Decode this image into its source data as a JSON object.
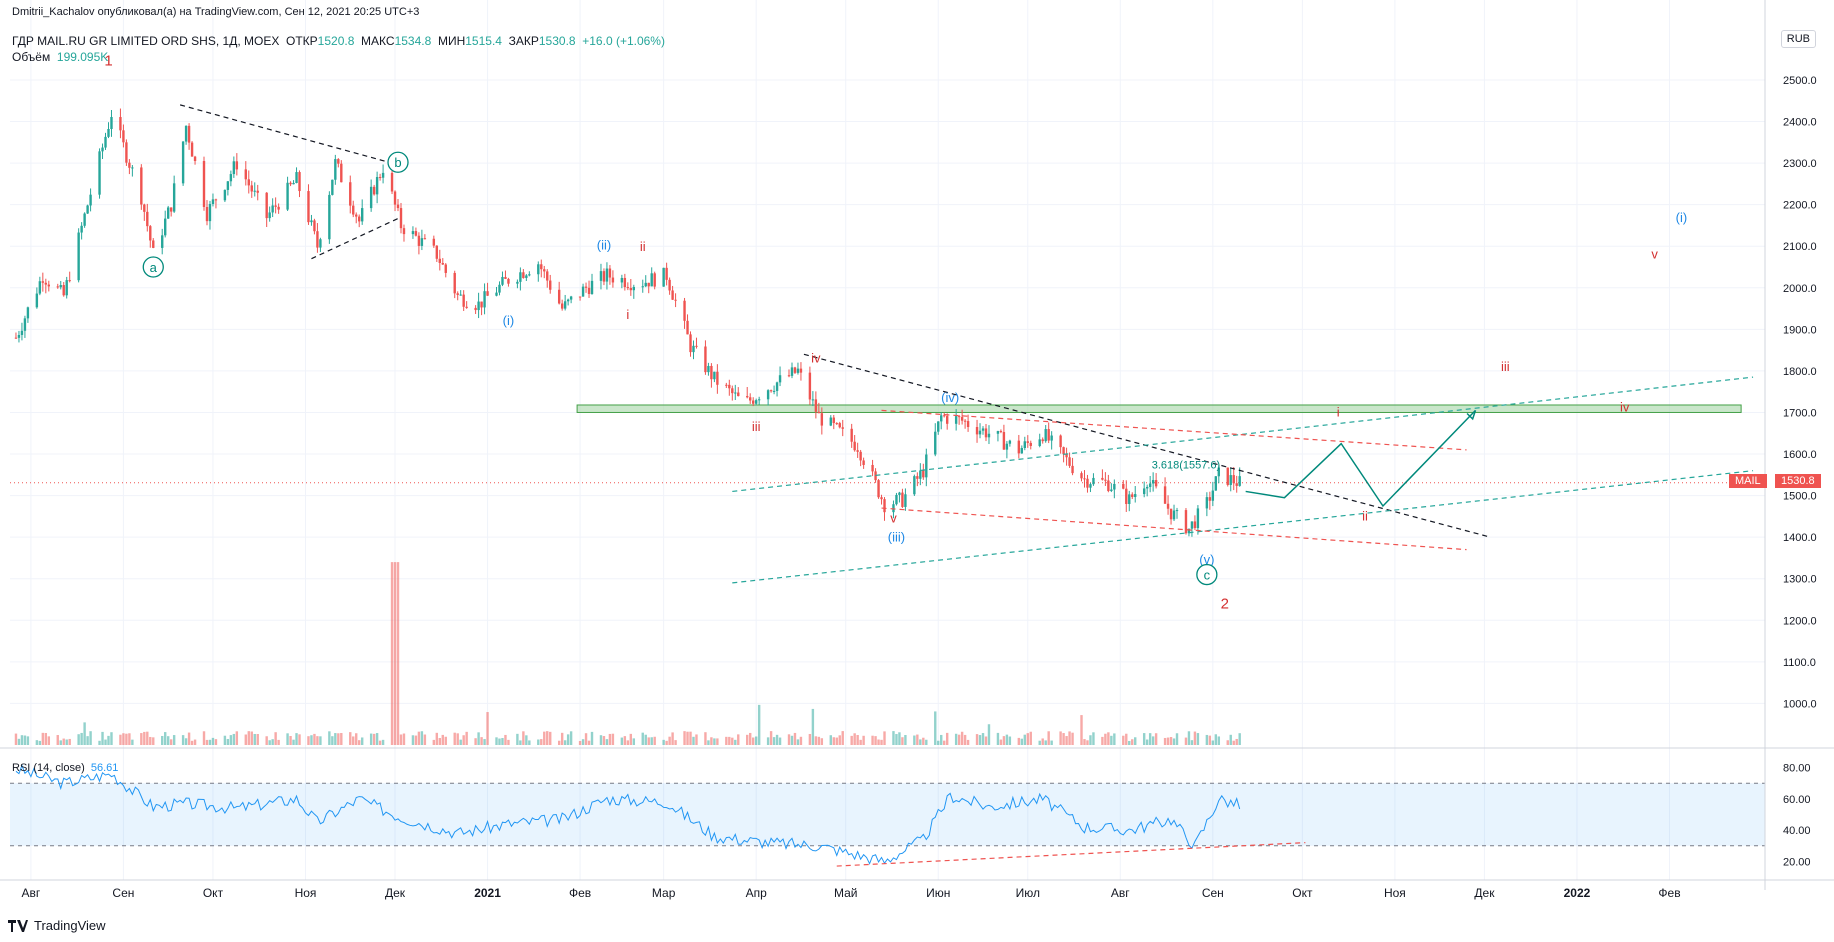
{
  "header": {
    "publisher": "Dmitrii_Kachalov опубликовал(а) на TradingView.com, Сен 12, 2021 20:25 UTC+3",
    "symbol": "ГДР MAIL.RU GR LIMITED ORD SHS, 1Д, MOEX",
    "open_label": "ОТКР",
    "open": "1520.8",
    "high_label": "МАКС",
    "high": "1534.8",
    "low_label": "МИН",
    "low": "1515.4",
    "close_label": "ЗАКР",
    "close": "1530.8",
    "change": "+16.0 (+1.06%)",
    "volume_label": "Объём",
    "volume": "199.095K"
  },
  "currency": "RUB",
  "price_tag": {
    "ticker": "MAIL",
    "price": "1530.8"
  },
  "rsi": {
    "label": "RSI (14, close)",
    "value": "56.61",
    "levels": [
      70,
      30
    ]
  },
  "footer": {
    "brand": "TradingView"
  },
  "chart_data": {
    "type": "candlestick",
    "price_axis": {
      "ticks": [
        "2500.0",
        "2400.0",
        "2300.0",
        "2200.0",
        "2100.0",
        "2000.0",
        "1900.0",
        "1800.0",
        "1700.0",
        "1600.0",
        "1500.0",
        "1400.0",
        "1300.0",
        "1200.0",
        "1100.0",
        "1000.0"
      ],
      "range": [
        900,
        2560
      ]
    },
    "rsi_axis": {
      "ticks": [
        "80.00",
        "60.00",
        "40.00",
        "20.00"
      ],
      "range": [
        10,
        90
      ]
    },
    "time_axis": [
      "Авг",
      "Сен",
      "Окт",
      "Ноя",
      "Дек",
      "2021",
      "Фев",
      "Мар",
      "Апр",
      "Май",
      "Июн",
      "Июл",
      "Авг",
      "Сен",
      "Окт",
      "Ноя",
      "Дек",
      "2022",
      "Фев"
    ],
    "price_path": [
      [
        "2020-07-27",
        1880
      ],
      [
        "2020-08-05",
        2030
      ],
      [
        "2020-08-12",
        1980
      ],
      [
        "2020-08-20",
        2200
      ],
      [
        "2020-08-28",
        2420
      ],
      [
        "2020-09-07",
        2220
      ],
      [
        "2020-09-11",
        2080
      ],
      [
        "2020-09-17",
        2200
      ],
      [
        "2020-09-22",
        2390
      ],
      [
        "2020-09-29",
        2180
      ],
      [
        "2020-10-09",
        2300
      ],
      [
        "2020-10-19",
        2170
      ],
      [
        "2020-10-29",
        2260
      ],
      [
        "2020-11-05",
        2100
      ],
      [
        "2020-11-11",
        2300
      ],
      [
        "2020-11-19",
        2160
      ],
      [
        "2020-11-27",
        2290
      ],
      [
        "2020-12-03",
        2150
      ],
      [
        "2020-12-15",
        2080
      ],
      [
        "2020-12-22",
        1980
      ],
      [
        "2020-12-29",
        1960
      ],
      [
        "2021-01-08",
        2020
      ],
      [
        "2021-01-18",
        2060
      ],
      [
        "2021-01-26",
        1950
      ],
      [
        "2021-02-03",
        2000
      ],
      [
        "2021-02-10",
        2030
      ],
      [
        "2021-02-20",
        2010
      ],
      [
        "2021-03-02",
        2030
      ],
      [
        "2021-03-10",
        1860
      ],
      [
        "2021-03-18",
        1780
      ],
      [
        "2021-03-28",
        1720
      ],
      [
        "2021-04-05",
        1760
      ],
      [
        "2021-04-15",
        1800
      ],
      [
        "2021-04-22",
        1690
      ],
      [
        "2021-05-05",
        1620
      ],
      [
        "2021-05-14",
        1480
      ],
      [
        "2021-05-20",
        1490
      ],
      [
        "2021-05-27",
        1560
      ],
      [
        "2021-06-02",
        1690
      ],
      [
        "2021-06-09",
        1680
      ],
      [
        "2021-06-18",
        1650
      ],
      [
        "2021-06-28",
        1610
      ],
      [
        "2021-07-06",
        1650
      ],
      [
        "2021-07-12",
        1600
      ],
      [
        "2021-07-20",
        1540
      ],
      [
        "2021-07-28",
        1530
      ],
      [
        "2021-08-04",
        1490
      ],
      [
        "2021-08-10",
        1540
      ],
      [
        "2021-08-18",
        1460
      ],
      [
        "2021-08-24",
        1420
      ],
      [
        "2021-08-30",
        1480
      ],
      [
        "2021-09-03",
        1550
      ],
      [
        "2021-09-10",
        1530
      ]
    ],
    "volume": {
      "spike": [
        "2020-12-01",
        1340
      ],
      "base": 960,
      "axis_value": "1000.0"
    },
    "rsi_series": [
      [
        "2020-07-27",
        79
      ],
      [
        "2020-08-12",
        70
      ],
      [
        "2020-08-28",
        76
      ],
      [
        "2020-09-11",
        55
      ],
      [
        "2020-09-22",
        57
      ],
      [
        "2020-10-09",
        54
      ],
      [
        "2020-10-29",
        60
      ],
      [
        "2020-11-05",
        45
      ],
      [
        "2020-11-19",
        60
      ],
      [
        "2020-12-03",
        48
      ],
      [
        "2020-12-22",
        38
      ],
      [
        "2021-01-08",
        44
      ],
      [
        "2021-01-26",
        47
      ],
      [
        "2021-02-10",
        60
      ],
      [
        "2021-03-02",
        58
      ],
      [
        "2021-03-18",
        36
      ],
      [
        "2021-04-05",
        32
      ],
      [
        "2021-04-22",
        30
      ],
      [
        "2021-05-14",
        20
      ],
      [
        "2021-05-27",
        34
      ],
      [
        "2021-06-05",
        62
      ],
      [
        "2021-06-18",
        55
      ],
      [
        "2021-07-06",
        60
      ],
      [
        "2021-07-20",
        42
      ],
      [
        "2021-08-04",
        40
      ],
      [
        "2021-08-18",
        47
      ],
      [
        "2021-08-26",
        30
      ],
      [
        "2021-09-03",
        60
      ],
      [
        "2021-09-10",
        56
      ]
    ],
    "annotations": [
      {
        "text": "1",
        "date": "2020-08-27",
        "price": 2535,
        "color": "#d32f2f",
        "size": 15
      },
      {
        "text": "a",
        "date": "2020-09-11",
        "price": 2038,
        "color": "#00897b",
        "circle": true
      },
      {
        "text": "b",
        "date": "2020-12-02",
        "price": 2290,
        "color": "#00897b",
        "circle": true
      },
      {
        "text": "(ii)",
        "date": "2021-02-09",
        "price": 2092,
        "color": "#1e88e5"
      },
      {
        "text": "ii",
        "date": "2021-02-22",
        "price": 2088,
        "color": "#d32f2f"
      },
      {
        "text": "(i)",
        "date": "2021-01-08",
        "price": 1910,
        "color": "#1e88e5"
      },
      {
        "text": "i",
        "date": "2021-02-17",
        "price": 1925,
        "color": "#d32f2f"
      },
      {
        "text": "iv",
        "date": "2021-04-21",
        "price": 1820,
        "color": "#d32f2f"
      },
      {
        "text": "iii",
        "date": "2021-04-01",
        "price": 1655,
        "color": "#d32f2f"
      },
      {
        "text": "(iv)",
        "date": "2021-06-05",
        "price": 1725,
        "color": "#1e88e5"
      },
      {
        "text": "v",
        "date": "2021-05-17",
        "price": 1435,
        "color": "#d32f2f"
      },
      {
        "text": "(iii)",
        "date": "2021-05-18",
        "price": 1390,
        "color": "#1e88e5"
      },
      {
        "text": "(v)",
        "date": "2021-08-30",
        "price": 1335,
        "color": "#1e88e5"
      },
      {
        "text": "c",
        "date": "2021-08-30",
        "price": 1298,
        "color": "#00897b",
        "circle": true
      },
      {
        "text": "2",
        "date": "2021-09-05",
        "price": 1228,
        "color": "#d32f2f",
        "size": 15
      },
      {
        "text": "3.618(1557.6)",
        "date": "2021-08-23",
        "price": 1565,
        "color": "#00897b",
        "size": 11
      },
      {
        "text": "i",
        "date": "2021-10-13",
        "price": 1690,
        "color": "#d32f2f"
      },
      {
        "text": "ii",
        "date": "2021-10-22",
        "price": 1440,
        "color": "#d32f2f"
      },
      {
        "text": "iii",
        "date": "2021-12-08",
        "price": 1800,
        "color": "#d32f2f"
      },
      {
        "text": "iv",
        "date": "2022-01-17",
        "price": 1702,
        "color": "#d32f2f"
      },
      {
        "text": "v",
        "date": "2022-01-27",
        "price": 2070,
        "color": "#d32f2f"
      },
      {
        "text": "(i)",
        "date": "2022-02-05",
        "price": 2158,
        "color": "#1e88e5"
      }
    ],
    "trendlines": [
      {
        "from": [
          "2020-09-20",
          2440
        ],
        "to": [
          "2020-12-05",
          2290
        ],
        "color": "#131722",
        "dash": true
      },
      {
        "from": [
          "2020-11-03",
          2070
        ],
        "to": [
          "2020-12-03",
          2170
        ],
        "color": "#131722",
        "dash": true
      },
      {
        "from": [
          "2021-04-17",
          1840
        ],
        "to": [
          "2021-12-03",
          1400
        ],
        "color": "#131722",
        "dash": true
      },
      {
        "from": [
          "2021-03-24",
          1510
        ],
        "to": [
          "2022-03-01",
          1785
        ],
        "color": "#26a69a",
        "dash": true
      },
      {
        "from": [
          "2021-03-24",
          1290
        ],
        "to": [
          "2022-03-01",
          1560
        ],
        "color": "#26a69a",
        "dash": true
      },
      {
        "from": [
          "2021-05-13",
          1705
        ],
        "to": [
          "2021-11-25",
          1610
        ],
        "color": "#ef5350",
        "dash": true
      },
      {
        "from": [
          "2021-05-13",
          1470
        ],
        "to": [
          "2021-11-25",
          1370
        ],
        "color": "#ef5350",
        "dash": true
      }
    ],
    "zone": {
      "from": [
        "2021-01-31",
        1718
      ],
      "to": [
        "2022-02-25",
        1700
      ],
      "color": "#a5d6a7"
    },
    "projection": [
      [
        "2021-09-12",
        1510
      ],
      [
        "2021-09-25",
        1495
      ],
      [
        "2021-10-14",
        1625
      ],
      [
        "2021-10-28",
        1475
      ],
      [
        "2021-11-28",
        1705
      ]
    ],
    "rsi_trendline": {
      "from": [
        "2021-04-28",
        17
      ],
      "to": [
        "2021-10-02",
        32
      ]
    }
  }
}
